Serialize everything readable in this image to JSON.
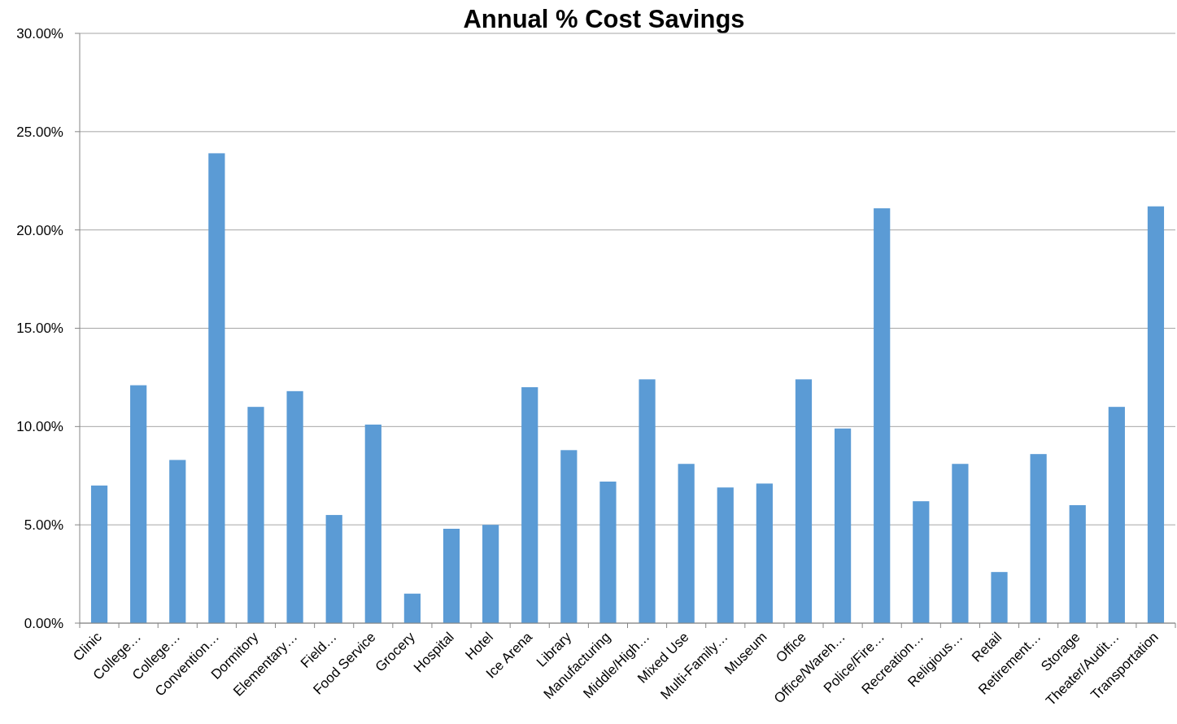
{
  "chart_data": {
    "type": "bar",
    "title": "Annual % Cost Savings",
    "categories": [
      "Clinic",
      "College…",
      "College…",
      "Convention…",
      "Dormitory",
      "Elementary…",
      "Field…",
      "Food Service",
      "Grocery",
      "Hospital",
      "Hotel",
      "Ice Arena",
      "Library",
      "Manufacturing",
      "Middle/High…",
      "Mixed Use",
      "Multi-Family…",
      "Museum",
      "Office",
      "Office/Wareh…",
      "Police/Fire…",
      "Recreation…",
      "Religious…",
      "Retail",
      "Retirement…",
      "Storage",
      "Theater/Audit…",
      "Transportation"
    ],
    "values": [
      7.0,
      12.1,
      8.3,
      23.9,
      11.0,
      11.8,
      5.5,
      10.1,
      1.5,
      4.8,
      5.0,
      12.0,
      8.8,
      7.2,
      12.4,
      8.1,
      6.9,
      7.1,
      12.4,
      9.9,
      21.1,
      6.2,
      8.1,
      2.6,
      8.6,
      6.0,
      11.0,
      21.2
    ],
    "color": "#5b9bd5",
    "ylim": [
      0,
      30
    ],
    "yticks": [
      {
        "value": 0,
        "label": "0.00%"
      },
      {
        "value": 5,
        "label": "5.00%"
      },
      {
        "value": 10,
        "label": "10.00%"
      },
      {
        "value": 15,
        "label": "15.00%"
      },
      {
        "value": 20,
        "label": "20.00%"
      },
      {
        "value": 25,
        "label": "25.00%"
      },
      {
        "value": 30,
        "label": "30.00%"
      }
    ],
    "grid": "y"
  }
}
